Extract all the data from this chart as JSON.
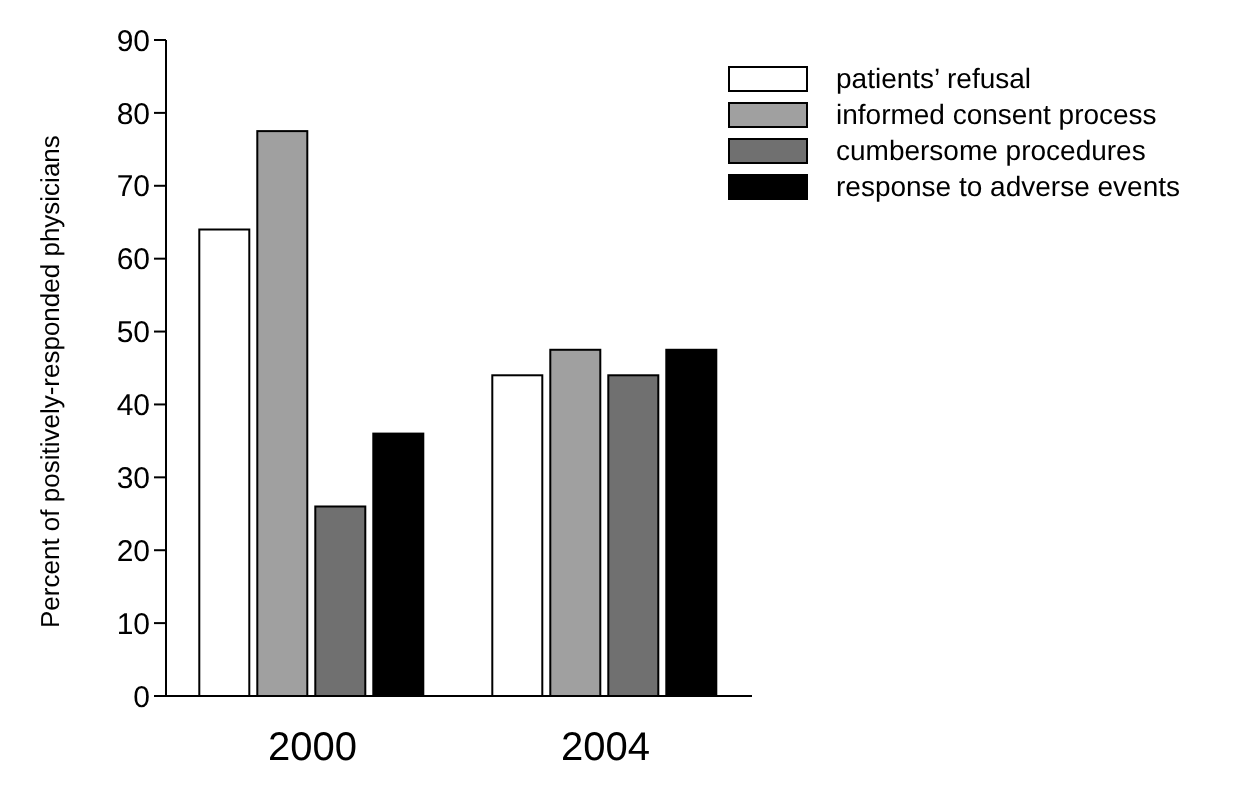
{
  "chart_data": {
    "type": "bar",
    "ylabel": "Percent of positively-responded physicians",
    "categories": [
      "2000",
      "2004"
    ],
    "series": [
      {
        "name": "patients’ refusal",
        "color": "#ffffff",
        "values": [
          64,
          44
        ]
      },
      {
        "name": "informed consent process",
        "color": "#a0a0a0",
        "values": [
          77.5,
          47.5
        ]
      },
      {
        "name": "cumbersome procedures",
        "color": "#707070",
        "values": [
          26,
          44
        ]
      },
      {
        "name": "response to adverse events",
        "color": "#000000",
        "values": [
          36,
          47.5
        ]
      }
    ],
    "ylim": [
      0,
      90
    ],
    "yticks": [
      0,
      10,
      20,
      30,
      40,
      50,
      60,
      70,
      80,
      90
    ],
    "grid": false,
    "legend": "top right"
  }
}
